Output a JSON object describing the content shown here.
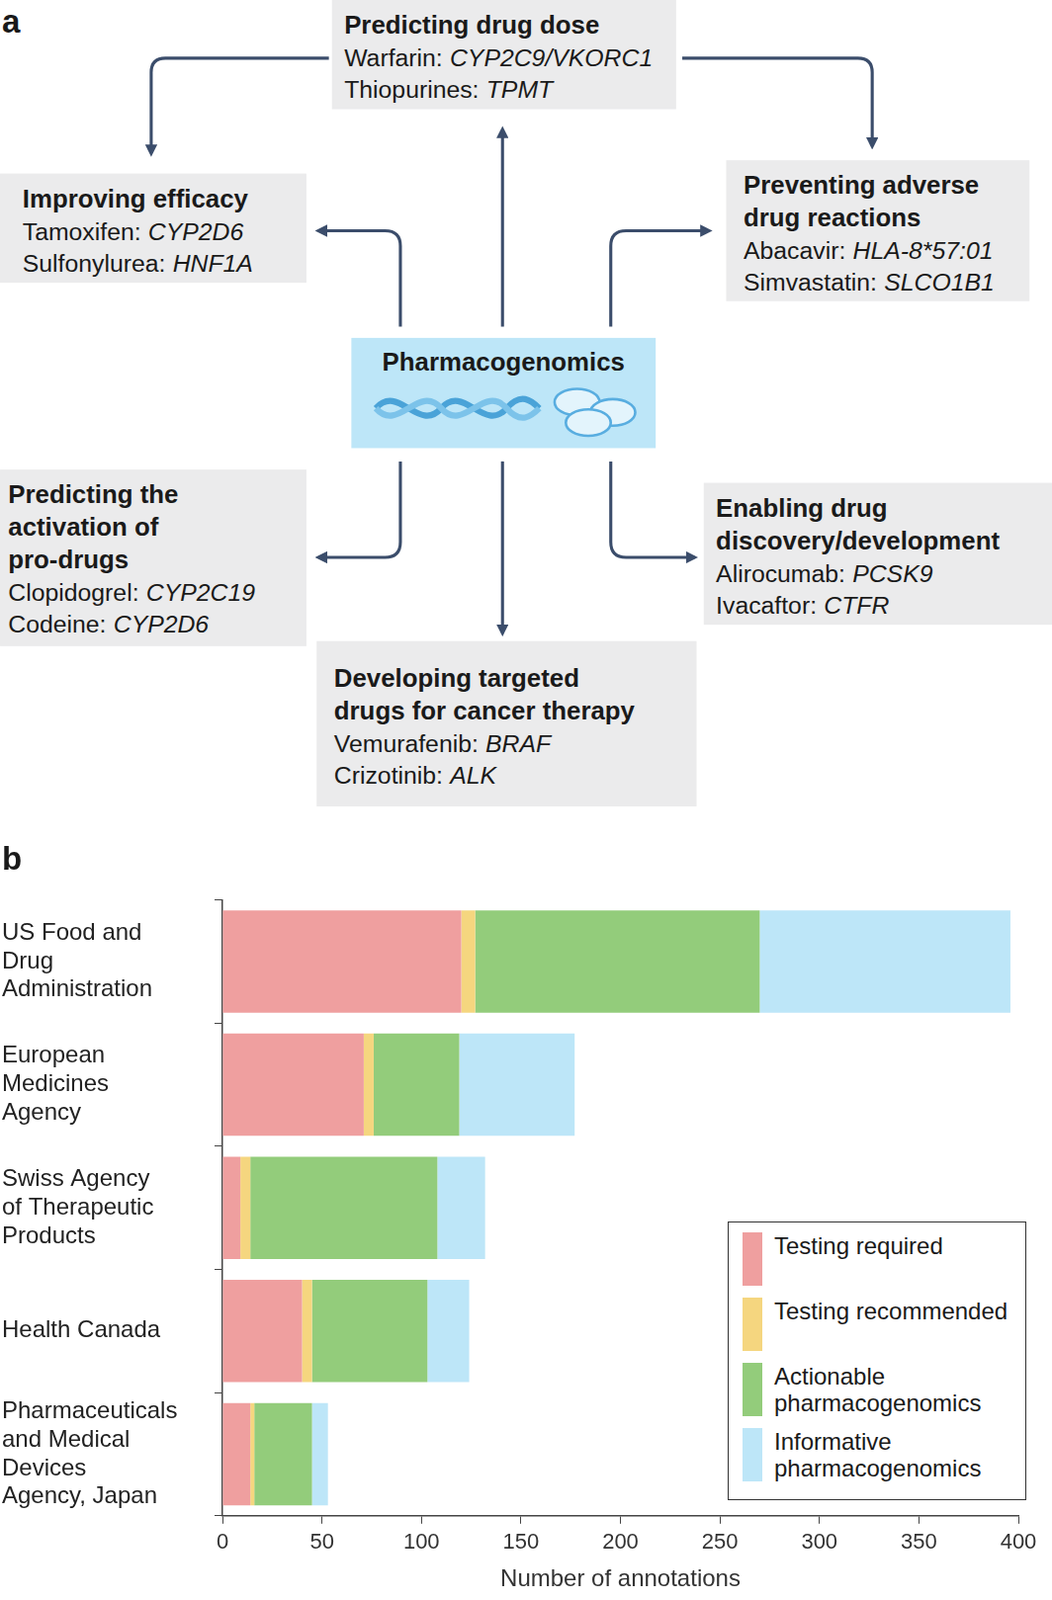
{
  "diagram": {
    "panel_label": "a",
    "center": "Pharmacogenomics",
    "nodes": [
      {
        "title": [
          "Predicting drug dose"
        ],
        "items": [
          {
            "drug": "Warfarin:",
            "gene": "CYP2C9/VKORC1"
          },
          {
            "drug": "Thiopurines:",
            "gene": "TPMT"
          }
        ]
      },
      {
        "title": [
          "Improving efficacy"
        ],
        "items": [
          {
            "drug": "Tamoxifen:",
            "gene": "CYP2D6"
          },
          {
            "drug": "Sulfonylurea:",
            "gene": "HNF1A"
          }
        ]
      },
      {
        "title": [
          "Preventing adverse",
          "drug reactions"
        ],
        "items": [
          {
            "drug": "Abacavir:",
            "gene": "HLA-8*57:01"
          },
          {
            "drug": "Simvastatin:",
            "gene": "SLCO1B1"
          }
        ]
      },
      {
        "title": [
          "Predicting the",
          "activation of",
          "pro-drugs"
        ],
        "items": [
          {
            "drug": "Clopidogrel:",
            "gene": "CYP2C19"
          },
          {
            "drug": "Codeine:",
            "gene": "CYP2D6"
          }
        ]
      },
      {
        "title": [
          "Enabling drug",
          "discovery/development"
        ],
        "items": [
          {
            "drug": "Alirocumab:",
            "gene": "PCSK9"
          },
          {
            "drug": "Ivacaftor:",
            "gene": "CTFR"
          }
        ]
      },
      {
        "title": [
          "Developing targeted",
          "drugs for cancer therapy"
        ],
        "items": [
          {
            "drug": "Vemurafenib:",
            "gene": "BRAF"
          },
          {
            "drug": "Crizotinib:",
            "gene": "ALK"
          }
        ]
      }
    ]
  },
  "chart_data": {
    "type": "bar",
    "title": "b",
    "orientation": "horizontal",
    "stacked": true,
    "grid": false,
    "legend": "lower right",
    "xlabel": "Number of annotations",
    "categories": [
      "US Food and Drug Administration",
      "European Medicines Agency",
      "Swiss Agency of Therapeutic Products",
      "Health Canada",
      "Pharmaceuticals and Medical Devices Agency, Japan"
    ],
    "series": [
      {
        "name": "Testing required",
        "color": "#ef9f9f",
        "values": [
          120,
          71,
          9,
          40,
          14
        ]
      },
      {
        "name": "Testing recommended",
        "color": "#f5d67f",
        "values": [
          7,
          5,
          5,
          5,
          2
        ]
      },
      {
        "name": "Actionable pharmacogenomics",
        "color": "#93cc7b",
        "values": [
          143,
          43,
          94,
          58,
          29
        ]
      },
      {
        "name": "Informative pharmacogenomics",
        "color": "#bde6f8",
        "values": [
          126,
          58,
          24,
          21,
          8
        ]
      }
    ],
    "xlim": [
      0,
      400
    ],
    "xticks": [
      0,
      50,
      100,
      150,
      200,
      250,
      300,
      350,
      400
    ]
  }
}
